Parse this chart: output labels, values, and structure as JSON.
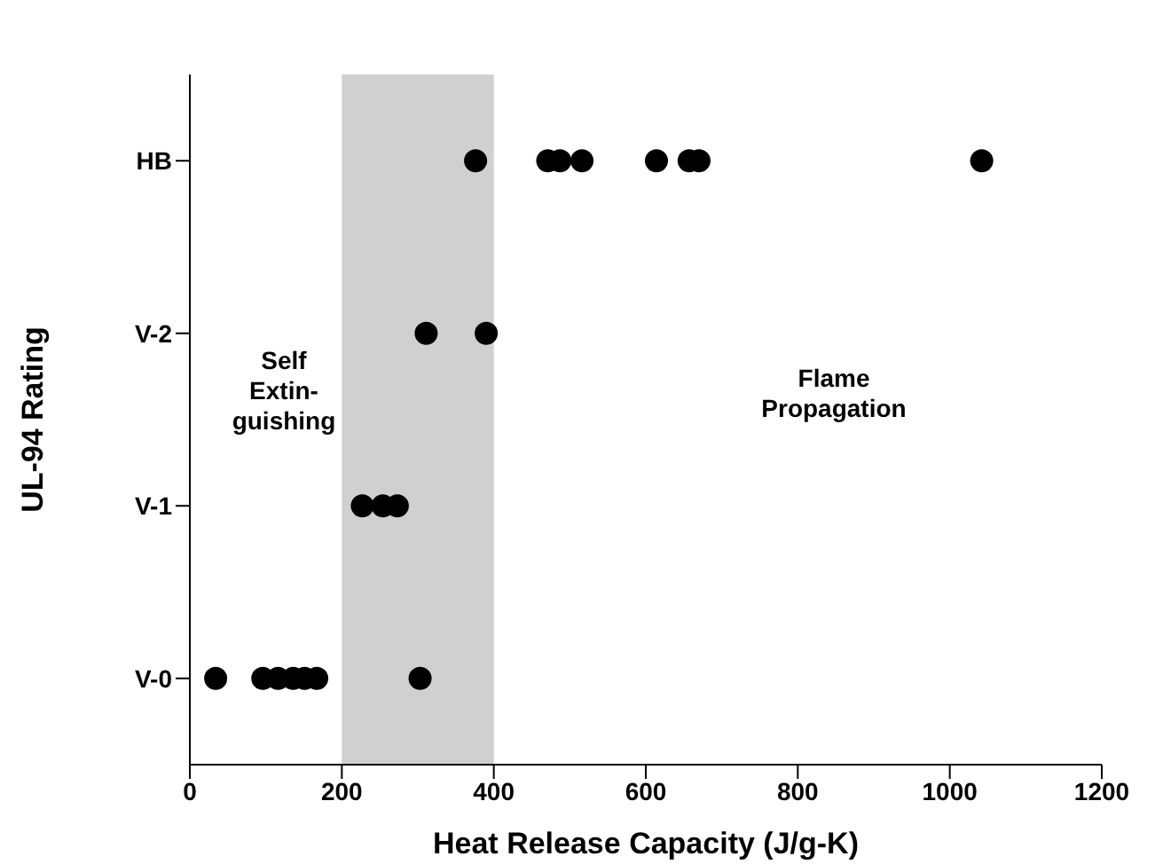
{
  "chart_data": {
    "type": "scatter",
    "orientation": "horizontal",
    "xlabel": "Heat Release Capacity (J/g-K)",
    "ylabel": "UL-94 Rating",
    "categories": [
      "HB",
      "V-2",
      "V-1",
      "V-0"
    ],
    "series": [
      {
        "type": "scatter",
        "color": "#000000",
        "x": [
          "V-0",
          "V-0",
          "V-0",
          "V-0",
          "V-0",
          "V-0",
          "V-0",
          "V-1",
          "V-1",
          "V-1",
          "V-2",
          "V-2",
          "HB",
          "HB",
          "HB",
          "HB",
          "HB",
          "HB",
          "HB",
          "HB"
        ],
        "values": [
          34,
          96,
          116,
          136,
          151,
          167,
          303,
          227,
          254,
          273,
          311,
          390,
          376,
          471,
          487,
          516,
          614,
          657,
          670,
          1042
        ]
      }
    ],
    "marker": "circle",
    "xlim": [
      0,
      1200
    ],
    "xticks": [
      0,
      200,
      400,
      600,
      800,
      1000,
      1200
    ],
    "bands": [
      {
        "axis": "x",
        "from": 200,
        "to": 400,
        "color": "#d0d0d0"
      }
    ],
    "annotations": [
      "Self\nExtin-\nguishing",
      "Flame\nPropagation"
    ],
    "grid": false,
    "legend": false
  }
}
